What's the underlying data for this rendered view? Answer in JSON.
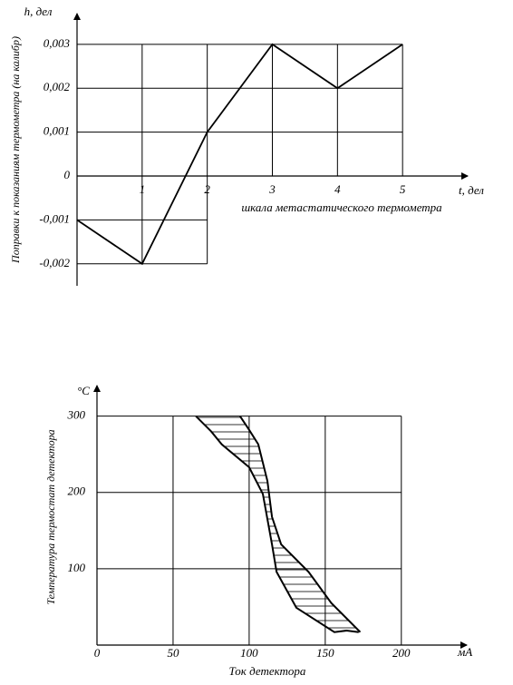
{
  "chart_data": [
    {
      "type": "line",
      "y_label_top": "h, дел",
      "x_label_end": "t, дел",
      "x_label": "шкала метастатического термометра",
      "y_label": "Поправки к показаниям термометра (на калибр)",
      "x": [
        0,
        1,
        2,
        3,
        4,
        5
      ],
      "values": [
        -0.001,
        -0.002,
        0.001,
        0.003,
        0.002,
        0.003
      ],
      "color": "#000000",
      "xlim": [
        0,
        6
      ],
      "ylim": [
        -0.0025,
        0.0037
      ],
      "xticks": [
        1,
        2,
        3,
        4,
        5
      ],
      "yticks": [
        {
          "value": 0.003,
          "label": "0,003"
        },
        {
          "value": 0.002,
          "label": "0,002"
        },
        {
          "value": 0.001,
          "label": "0,001"
        },
        0,
        {
          "value": -0.001,
          "label": "-0,001"
        },
        {
          "value": -0.002,
          "label": "-0,002"
        }
      ],
      "grid": true
    },
    {
      "type": "band",
      "y_label_top": "°C",
      "x_label_end": "мА",
      "x_label": "Ток детектора",
      "y_label": "Температура термостат детектора",
      "series": [
        {
          "color": "#000000",
          "x": [
            65,
            75,
            82,
            100,
            109,
            115,
            118,
            131,
            156,
            164,
            172
          ],
          "values": [
            300,
            280,
            263,
            233,
            198,
            132,
            96,
            49,
            17,
            19,
            17
          ]
        },
        {
          "color": "#000000",
          "x": [
            94,
            100,
            106,
            112,
            115,
            121,
            139,
            154,
            173
          ],
          "values": [
            300,
            282,
            263,
            215,
            168,
            132,
            96,
            55,
            17
          ]
        }
      ],
      "xlim": [
        0,
        243
      ],
      "ylim": [
        0,
        340
      ],
      "xticks": [
        0,
        50,
        100,
        150,
        200
      ],
      "yticks": [
        100,
        200,
        300
      ],
      "grid": true
    }
  ]
}
